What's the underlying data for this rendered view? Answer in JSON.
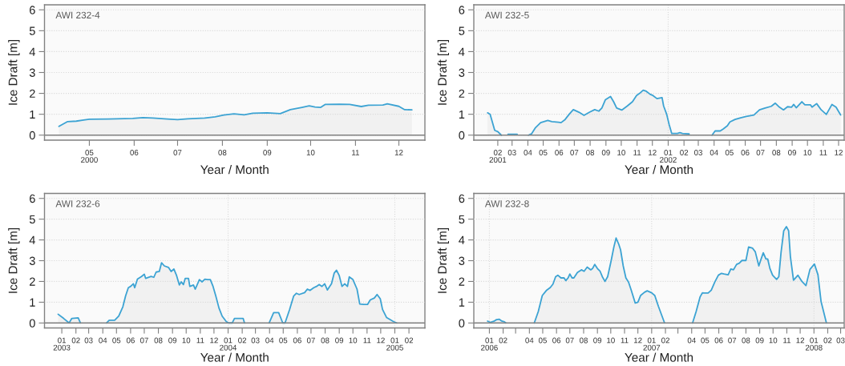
{
  "chart_data": [
    {
      "type": "area",
      "title": "AWI 232-4",
      "xlabel": "Year / Month",
      "ylabel": "Ice Draft [m]",
      "x": [
        "2000-04-10",
        "2000-04-16",
        "2000-04-22",
        "2000-04-27",
        "2000-05-01",
        "2000-05-14",
        "2000-05-31",
        "2000-06-07",
        "2000-06-14",
        "2000-06-24",
        "2000-07-01",
        "2000-07-08",
        "2000-07-20",
        "2000-07-27",
        "2000-08-02",
        "2000-08-09",
        "2000-08-16",
        "2000-08-22",
        "2000-09-01",
        "2000-09-10",
        "2000-09-17",
        "2000-09-25",
        "2000-09-30",
        "2000-10-04",
        "2000-10-08",
        "2000-10-11",
        "2000-10-21",
        "2000-10-28",
        "2000-11-05",
        "2000-11-10",
        "2000-11-20",
        "2000-11-23",
        "2000-12-01",
        "2000-12-05",
        "2000-12-10"
      ],
      "series": [
        {
          "color": "#3ca3d3",
          "values": [
            0.42,
            0.65,
            0.67,
            0.72,
            0.76,
            0.77,
            0.8,
            0.84,
            0.82,
            0.77,
            0.74,
            0.78,
            0.82,
            0.88,
            0.96,
            1.02,
            0.97,
            1.05,
            1.07,
            1.03,
            1.22,
            1.33,
            1.4,
            1.35,
            1.33,
            1.47,
            1.48,
            1.47,
            1.37,
            1.43,
            1.44,
            1.5,
            1.38,
            1.22,
            1.21
          ]
        }
      ],
      "xlim": [
        "2000-03-31",
        "2000-12-19"
      ],
      "ylim": [
        -0.24,
        6.24
      ],
      "xticks": [
        {
          "value": "2000-05",
          "label": "05\n2000"
        },
        {
          "value": "2000-06",
          "label": "06"
        },
        {
          "value": "2000-07",
          "label": "07"
        },
        {
          "value": "2000-08",
          "label": "08"
        },
        {
          "value": "2000-09",
          "label": "09"
        },
        {
          "value": "2000-10",
          "label": "10"
        },
        {
          "value": "2000-11",
          "label": "11"
        },
        {
          "value": "2000-12",
          "label": "12"
        }
      ],
      "yticks": [
        0,
        1,
        2,
        3,
        4,
        5,
        6
      ],
      "grid": "y",
      "ref_lines": [
        {
          "axis": "y",
          "value": 0,
          "color": "#808080"
        }
      ]
    },
    {
      "type": "area",
      "title": "AWI 232-5",
      "xlabel": "Year / Month",
      "ylabel": "Ice Draft [m]",
      "x": [
        "2001-01-12",
        "2001-01-17",
        "2001-01-26",
        "2001-02-01",
        "2001-02-08",
        "2001-02-15",
        "2001-02-21",
        "2001-03-11",
        "2001-03-20",
        "2001-04-02",
        "2001-04-08",
        "2001-04-16",
        "2001-04-26",
        "2001-05-10",
        "2001-05-18",
        "2001-05-31",
        "2001-06-05",
        "2001-06-13",
        "2001-06-21",
        "2001-06-29",
        "2001-07-10",
        "2001-07-20",
        "2001-07-31",
        "2001-08-10",
        "2001-08-18",
        "2001-08-24",
        "2001-08-31",
        "2001-09-10",
        "2001-09-16",
        "2001-09-22",
        "2001-10-02",
        "2001-10-13",
        "2001-10-23",
        "2001-10-31",
        "2001-11-06",
        "2001-11-13",
        "2001-11-19",
        "2001-11-27",
        "2001-12-02",
        "2001-12-10",
        "2001-12-20",
        "2001-12-23",
        "2001-12-29",
        "2002-01-03",
        "2002-01-08",
        "2002-01-19",
        "2002-01-24",
        "2002-01-29",
        "2002-02-11",
        "2002-02-20",
        "2002-03-28",
        "2002-04-03",
        "2002-04-13",
        "2002-04-19",
        "2002-04-27",
        "2002-05-02",
        "2002-05-12",
        "2002-05-23",
        "2002-06-03",
        "2002-06-18",
        "2002-06-29",
        "2002-07-10",
        "2002-07-22",
        "2002-07-30",
        "2002-08-07",
        "2002-08-15",
        "2002-08-23",
        "2002-08-31",
        "2002-09-04",
        "2002-09-09",
        "2002-09-20",
        "2002-09-26",
        "2002-10-07",
        "2002-10-10",
        "2002-10-19",
        "2002-10-28",
        "2002-11-07",
        "2002-11-18",
        "2002-11-26",
        "2002-12-05"
      ],
      "series": [
        {
          "color": "#3ca3d3",
          "values": [
            1.07,
            1.0,
            0.23,
            0.17,
            0,
            null,
            0.04,
            0.04,
            null,
            0,
            0.06,
            0.36,
            0.6,
            0.7,
            0.65,
            0.62,
            0.6,
            0.75,
            1.0,
            1.22,
            1.1,
            0.95,
            1.1,
            1.22,
            1.15,
            1.3,
            1.7,
            1.85,
            1.6,
            1.3,
            1.2,
            1.4,
            1.6,
            1.9,
            2.0,
            2.15,
            2.1,
            1.95,
            1.9,
            1.75,
            1.8,
            1.4,
            1.0,
            0.5,
            0.08,
            0.08,
            0.12,
            0.08,
            0.06,
            null,
            0,
            0.2,
            0.2,
            0.3,
            0.45,
            0.63,
            0.75,
            0.83,
            0.9,
            0.96,
            1.21,
            1.3,
            1.38,
            1.53,
            1.34,
            1.21,
            1.36,
            1.34,
            1.47,
            1.31,
            1.6,
            1.45,
            1.45,
            1.34,
            1.51,
            1.21,
            0.99,
            1.47,
            1.34,
            0.97
          ]
        }
      ],
      "xlim": [
        "2000-12-16",
        "2002-12-12"
      ],
      "ylim": [
        -0.24,
        6.24
      ],
      "xticks": [
        {
          "value": "2001-02",
          "label": "02\n2001"
        },
        {
          "value": "2001-03",
          "label": "03"
        },
        {
          "value": "2001-04",
          "label": "04"
        },
        {
          "value": "2001-05",
          "label": "05"
        },
        {
          "value": "2001-06",
          "label": "06"
        },
        {
          "value": "2001-07",
          "label": "07"
        },
        {
          "value": "2001-08",
          "label": "08"
        },
        {
          "value": "2001-09",
          "label": "09"
        },
        {
          "value": "2001-10",
          "label": "10"
        },
        {
          "value": "2001-11",
          "label": "11"
        },
        {
          "value": "2001-12",
          "label": "12"
        },
        {
          "value": "2002-01",
          "label": "01\n2002"
        },
        {
          "value": "2002-02",
          "label": "02"
        },
        {
          "value": "2002-03",
          "label": "03"
        },
        {
          "value": "2002-04",
          "label": "04"
        },
        {
          "value": "2002-05",
          "label": "05"
        },
        {
          "value": "2002-06",
          "label": "06"
        },
        {
          "value": "2002-07",
          "label": "07"
        },
        {
          "value": "2002-08",
          "label": "08"
        },
        {
          "value": "2002-09",
          "label": "09"
        },
        {
          "value": "2002-10",
          "label": "10"
        },
        {
          "value": "2002-11",
          "label": "11"
        },
        {
          "value": "2002-12",
          "label": "12"
        }
      ],
      "yticks": [
        0,
        1,
        2,
        3,
        4,
        5,
        6
      ],
      "grid": "y",
      "ref_lines": [
        {
          "axis": "y",
          "value": 0,
          "color": "#808080"
        },
        {
          "axis": "x",
          "value": "2002-01-01",
          "color": "#d9d9d9",
          "line_style": "dotted"
        }
      ]
    },
    {
      "type": "area",
      "title": "AWI 232-6",
      "xlabel": "Year / Month",
      "ylabel": "Ice Draft [m]",
      "x": [
        "2002-12-24",
        "2003-01-05",
        "2003-01-17",
        "2003-01-23",
        "2003-02-06",
        "2003-02-11",
        "2003-03-01",
        "2003-04-09",
        "2003-04-15",
        "2003-04-27",
        "2003-05-06",
        "2003-05-15",
        "2003-05-21",
        "2003-05-27",
        "2003-06-01",
        "2003-06-07",
        "2003-06-10",
        "2003-06-16",
        "2003-06-25",
        "2003-07-01",
        "2003-07-04",
        "2003-07-16",
        "2003-07-22",
        "2003-07-27",
        "2003-08-03",
        "2003-08-08",
        "2003-08-14",
        "2003-08-23",
        "2003-08-29",
        "2003-09-04",
        "2003-09-10",
        "2003-09-16",
        "2003-09-20",
        "2003-09-25",
        "2003-09-29",
        "2003-10-06",
        "2003-10-09",
        "2003-10-17",
        "2003-10-21",
        "2003-10-30",
        "2003-11-05",
        "2003-11-11",
        "2003-11-17",
        "2003-11-23",
        "2003-11-29",
        "2003-12-05",
        "2003-12-12",
        "2003-12-19",
        "2003-12-28",
        "2004-01-02",
        "2004-01-10",
        "2004-01-15",
        "2004-02-03",
        "2004-02-06",
        "2004-03-01",
        "2004-03-31",
        "2004-04-10",
        "2004-04-21",
        "2004-04-30",
        "2004-05-05",
        "2004-05-15",
        "2004-05-24",
        "2004-05-30",
        "2004-06-05",
        "2004-06-17",
        "2004-06-23",
        "2004-06-29",
        "2004-07-07",
        "2004-07-13",
        "2004-07-19",
        "2004-07-25",
        "2004-07-31",
        "2004-08-06",
        "2004-08-15",
        "2004-08-21",
        "2004-08-26",
        "2004-09-01",
        "2004-09-07",
        "2004-09-13",
        "2004-09-19",
        "2004-09-23",
        "2004-10-01",
        "2004-10-10",
        "2004-10-16",
        "2004-10-25",
        "2004-11-02",
        "2004-11-08",
        "2004-11-17",
        "2004-11-23",
        "2004-11-30",
        "2004-12-05",
        "2004-12-14",
        "2004-12-29",
        "2005-01-05"
      ],
      "series": [
        {
          "color": "#3ca3d3",
          "values": [
            0.42,
            0.22,
            0,
            0.22,
            0.25,
            0,
            null,
            0,
            0.13,
            0.13,
            0.33,
            0.78,
            1.3,
            1.7,
            1.76,
            1.89,
            1.7,
            2.11,
            2.24,
            2.35,
            2.15,
            2.24,
            2.2,
            2.45,
            2.48,
            2.9,
            2.75,
            2.68,
            2.48,
            2.6,
            2.28,
            1.83,
            1.98,
            1.85,
            2.15,
            2.15,
            1.76,
            1.83,
            1.63,
            2.09,
            1.98,
            2.11,
            2.09,
            2.09,
            1.76,
            1.3,
            0.72,
            0.33,
            0.07,
            0,
            0,
            0.22,
            0.22,
            0,
            null,
            0,
            0.5,
            0.5,
            0,
            0,
            0.65,
            1.3,
            1.43,
            1.37,
            1.46,
            1.63,
            1.57,
            1.7,
            1.76,
            1.85,
            1.76,
            1.89,
            1.59,
            1.89,
            2.41,
            2.54,
            2.28,
            1.76,
            1.89,
            1.76,
            2.22,
            2.09,
            1.63,
            0.91,
            0.89,
            0.89,
            1.11,
            1.2,
            1.37,
            1.17,
            0.65,
            0.26,
            0.07,
            0
          ]
        }
      ],
      "xlim": [
        "2002-11-24",
        "2005-03-08"
      ],
      "ylim": [
        -0.24,
        6.24
      ],
      "xticks": [
        {
          "value": "2003-01",
          "label": "01\n2003"
        },
        {
          "value": "2003-02",
          "label": "02"
        },
        {
          "value": "2003-03",
          "label": "03"
        },
        {
          "value": "2003-04",
          "label": "04"
        },
        {
          "value": "2003-05",
          "label": "05"
        },
        {
          "value": "2003-06",
          "label": "06"
        },
        {
          "value": "2003-07",
          "label": "07"
        },
        {
          "value": "2003-08",
          "label": "08"
        },
        {
          "value": "2003-09",
          "label": "09"
        },
        {
          "value": "2003-10",
          "label": "10"
        },
        {
          "value": "2003-11",
          "label": "11"
        },
        {
          "value": "2003-12",
          "label": "12"
        },
        {
          "value": "2004-01",
          "label": "01\n2004"
        },
        {
          "value": "2004-02",
          "label": "02"
        },
        {
          "value": "2004-03",
          "label": "03"
        },
        {
          "value": "2004-04",
          "label": "04"
        },
        {
          "value": "2004-05",
          "label": "05"
        },
        {
          "value": "2004-06",
          "label": "06"
        },
        {
          "value": "2004-07",
          "label": "07"
        },
        {
          "value": "2004-08",
          "label": "08"
        },
        {
          "value": "2004-09",
          "label": "09"
        },
        {
          "value": "2004-10",
          "label": "10"
        },
        {
          "value": "2004-11",
          "label": "11"
        },
        {
          "value": "2004-12",
          "label": "12"
        },
        {
          "value": "2005-01",
          "label": "01\n2005"
        },
        {
          "value": "2005-02",
          "label": "02"
        }
      ],
      "yticks": [
        0,
        1,
        2,
        3,
        4,
        5,
        6
      ],
      "grid": "y",
      "ref_lines": [
        {
          "axis": "y",
          "value": 0,
          "color": "#808080"
        },
        {
          "axis": "x",
          "value": "2004-01-01",
          "color": "#d9d9d9",
          "line_style": "dotted"
        },
        {
          "axis": "x",
          "value": "2005-01-01",
          "color": "#d9d9d9",
          "line_style": "dotted"
        }
      ]
    },
    {
      "type": "area",
      "title": "AWI 232-8",
      "xlabel": "Year / Month",
      "ylabel": "Ice Draft [m]",
      "x": [
        "2005-12-28",
        "2006-01-03",
        "2006-01-11",
        "2006-01-17",
        "2006-01-23",
        "2006-01-29",
        "2006-02-04",
        "2006-02-07",
        "2006-03-01",
        "2006-04-12",
        "2006-04-21",
        "2006-04-30",
        "2006-05-09",
        "2006-05-18",
        "2006-05-24",
        "2006-05-30",
        "2006-06-04",
        "2006-06-11",
        "2006-06-18",
        "2006-06-22",
        "2006-06-27",
        "2006-07-01",
        "2006-07-06",
        "2006-07-10",
        "2006-07-18",
        "2006-07-27",
        "2006-08-02",
        "2006-08-09",
        "2006-08-17",
        "2006-08-21",
        "2006-08-26",
        "2006-09-01",
        "2006-09-07",
        "2006-09-12",
        "2006-09-18",
        "2006-09-24",
        "2006-10-02",
        "2006-10-08",
        "2006-10-13",
        "2006-10-19",
        "2006-10-23",
        "2006-10-29",
        "2006-11-04",
        "2006-11-10",
        "2006-11-16",
        "2006-11-25",
        "2006-12-01",
        "2006-12-07",
        "2006-12-16",
        "2006-12-22",
        "2007-01-01",
        "2007-01-08",
        "2007-01-16",
        "2007-01-25",
        "2007-01-30",
        "2007-03-01",
        "2007-04-03",
        "2007-04-11",
        "2007-04-20",
        "2007-04-25",
        "2007-04-29",
        "2007-05-08",
        "2007-05-15",
        "2007-05-23",
        "2007-05-31",
        "2007-06-07",
        "2007-06-13",
        "2007-06-22",
        "2007-06-28",
        "2007-07-04",
        "2007-07-11",
        "2007-07-17",
        "2007-07-23",
        "2007-08-01",
        "2007-08-07",
        "2007-08-16",
        "2007-08-22",
        "2007-08-30",
        "2007-09-03",
        "2007-09-09",
        "2007-09-15",
        "2007-09-19",
        "2007-09-24",
        "2007-09-30",
        "2007-10-09",
        "2007-10-14",
        "2007-10-19",
        "2007-10-25",
        "2007-10-31",
        "2007-11-05",
        "2007-11-09",
        "2007-11-16",
        "2007-11-26",
        "2007-12-05",
        "2007-12-14",
        "2007-12-23",
        "2008-01-02",
        "2008-01-10",
        "2008-01-17",
        "2008-01-29"
      ],
      "series": [
        {
          "color": "#3ca3d3",
          "values": [
            0.09,
            0.03,
            0.08,
            0.16,
            0.18,
            0.09,
            0.05,
            0,
            null,
            0,
            0.55,
            1.32,
            1.56,
            1.71,
            1.87,
            2.23,
            2.3,
            2.17,
            2.17,
            2.04,
            2.17,
            2.36,
            2.17,
            2.17,
            2.43,
            2.56,
            2.49,
            2.69,
            2.56,
            2.62,
            2.82,
            2.62,
            2.49,
            2.23,
            2.0,
            2.23,
            3.01,
            3.66,
            4.09,
            3.79,
            3.53,
            2.75,
            2.17,
            1.97,
            1.58,
            0.96,
            1.0,
            1.32,
            1.48,
            1.55,
            1.45,
            1.32,
            0.81,
            0.29,
            0,
            null,
            0,
            0.55,
            1.26,
            1.45,
            1.44,
            1.44,
            1.58,
            1.97,
            2.3,
            2.39,
            2.36,
            2.32,
            2.6,
            2.56,
            2.82,
            2.88,
            3.01,
            3.01,
            3.66,
            3.6,
            3.43,
            2.75,
            3.01,
            3.38,
            3.08,
            3.08,
            2.62,
            2.3,
            2.1,
            2.23,
            3.4,
            4.44,
            4.64,
            4.44,
            3.2,
            2.06,
            2.3,
            2.0,
            1.8,
            2.58,
            2.84,
            2.32,
            1.03,
            0
          ]
        }
      ],
      "xlim": [
        "2005-11-27",
        "2008-03-09"
      ],
      "ylim": [
        -0.24,
        6.24
      ],
      "xticks": [
        {
          "value": "2006-01",
          "label": "01\n2006"
        },
        {
          "value": "2006-02",
          "label": "02"
        },
        {
          "value": "2006-03",
          "label": null
        },
        {
          "value": "2006-04",
          "label": "04"
        },
        {
          "value": "2006-05",
          "label": "05"
        },
        {
          "value": "2006-06",
          "label": "06"
        },
        {
          "value": "2006-07",
          "label": "07"
        },
        {
          "value": "2006-08",
          "label": "08"
        },
        {
          "value": "2006-09",
          "label": "09"
        },
        {
          "value": "2006-10",
          "label": "10"
        },
        {
          "value": "2006-11",
          "label": "11"
        },
        {
          "value": "2006-12",
          "label": "12"
        },
        {
          "value": "2007-01",
          "label": "01\n2007"
        },
        {
          "value": "2007-02",
          "label": "02"
        },
        {
          "value": "2007-03",
          "label": null
        },
        {
          "value": "2007-04",
          "label": "04"
        },
        {
          "value": "2007-05",
          "label": "05"
        },
        {
          "value": "2007-06",
          "label": "06"
        },
        {
          "value": "2007-07",
          "label": "07"
        },
        {
          "value": "2007-08",
          "label": "08"
        },
        {
          "value": "2007-09",
          "label": "09"
        },
        {
          "value": "2007-10",
          "label": "10"
        },
        {
          "value": "2007-11",
          "label": "11"
        },
        {
          "value": "2007-12",
          "label": "12"
        },
        {
          "value": "2008-01",
          "label": "01\n2008"
        },
        {
          "value": "2008-02",
          "label": "02"
        },
        {
          "value": "2008-03",
          "label": "03"
        }
      ],
      "yticks": [
        0,
        1,
        2,
        3,
        4,
        5,
        6
      ],
      "grid": "y",
      "ref_lines": [
        {
          "axis": "y",
          "value": 0,
          "color": "#808080"
        },
        {
          "axis": "x",
          "value": "2006-01-01",
          "color": "#d9d9d9",
          "line_style": "dotted"
        },
        {
          "axis": "x",
          "value": "2007-01-01",
          "color": "#d9d9d9",
          "line_style": "dotted"
        },
        {
          "axis": "x",
          "value": "2008-01-01",
          "color": "#d9d9d9",
          "line_style": "dotted"
        }
      ]
    }
  ]
}
